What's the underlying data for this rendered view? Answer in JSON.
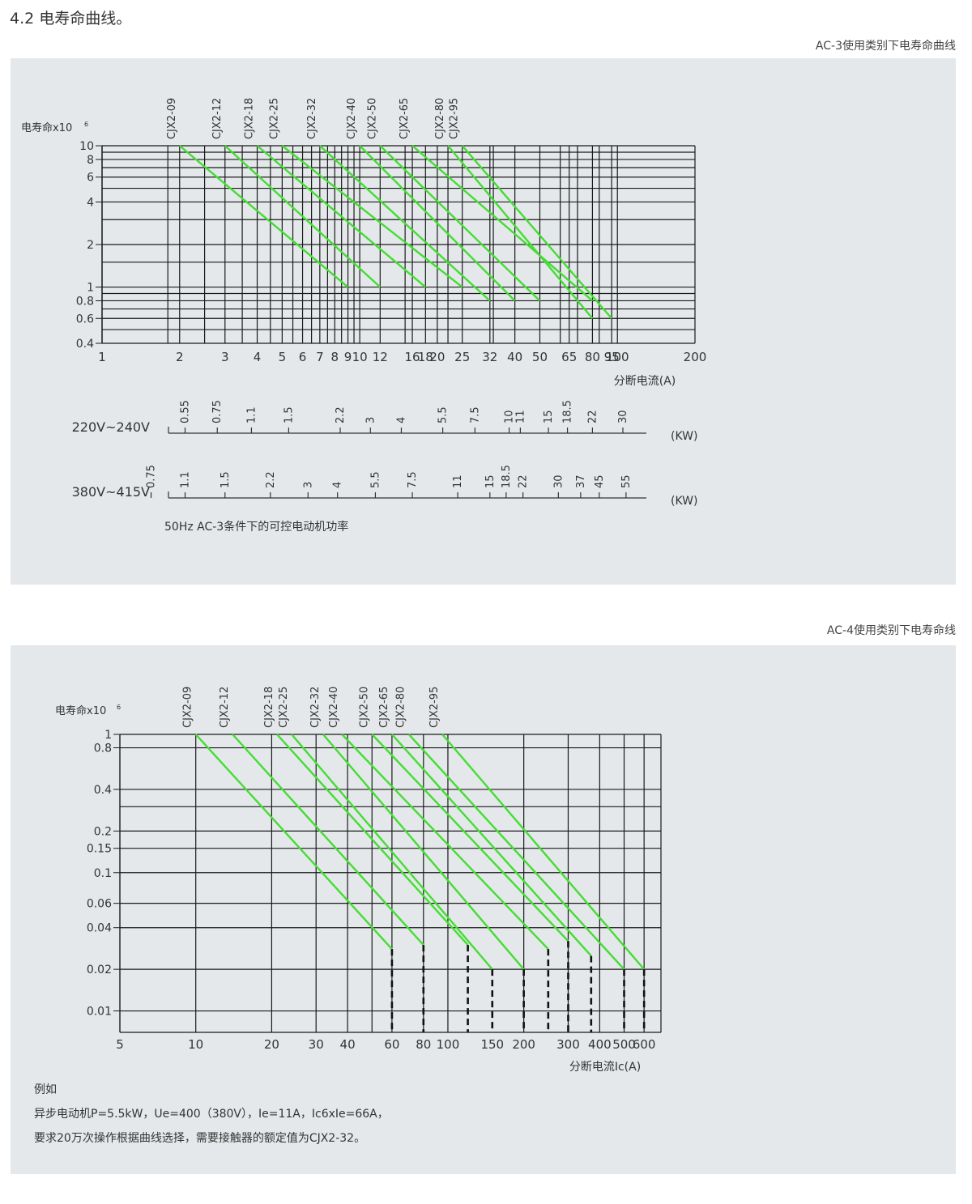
{
  "heading": "4.2 电寿命曲线。",
  "colors": {
    "panel": "#e4e8ea",
    "curve": "#44dd33",
    "grid": "#1a1a1a",
    "dash": "#111111"
  },
  "chart_data": [
    {
      "type": "line",
      "caption": "AC-3使用类别下电寿命曲线",
      "ylabel": "电寿命x10",
      "ylabel_exp": "6",
      "xlabel": "分断电流(A)",
      "x_scale": "log",
      "y_scale": "log",
      "xlim": [
        1,
        200
      ],
      "ylim": [
        0.4,
        10
      ],
      "x_ticks": [
        1,
        2,
        3,
        4,
        5,
        6,
        7,
        8,
        9,
        10,
        12,
        16,
        18,
        20,
        25,
        32,
        40,
        50,
        65,
        80,
        95,
        100,
        200
      ],
      "x_tick_labels": [
        "1",
        "2",
        "3",
        "4",
        "5",
        "6",
        "7",
        "8",
        "9",
        "10",
        "12",
        "16",
        "18",
        "20",
        "25",
        "32",
        "40",
        "50",
        "65",
        "80",
        "95",
        "100",
        "200"
      ],
      "x_grid": [
        1,
        1.8,
        2,
        2.5,
        3,
        3.5,
        4,
        4.5,
        5,
        5.5,
        6,
        6.5,
        7,
        7.5,
        8,
        8.5,
        9,
        9.5,
        10,
        12,
        15,
        16,
        18,
        20,
        22,
        25,
        32,
        33,
        40,
        50,
        60,
        65,
        70,
        80,
        85,
        95,
        100,
        200
      ],
      "y_grid": [
        0.4,
        0.5,
        0.6,
        0.7,
        0.8,
        0.9,
        1,
        1.5,
        2,
        3,
        4,
        5,
        6,
        7,
        8,
        9,
        10
      ],
      "y_ticks": [
        10,
        8,
        6,
        4,
        2,
        1,
        0.8,
        0.6,
        0.4
      ],
      "y_tick_labels": [
        "10",
        "8",
        "6",
        "4",
        "2",
        "1",
        "0.8",
        "0.6",
        "0.4"
      ],
      "series": [
        {
          "name": "CJX2-09",
          "x": [
            2,
            9
          ],
          "y": [
            10,
            1
          ]
        },
        {
          "name": "CJX2-12",
          "x": [
            3,
            12
          ],
          "y": [
            10,
            1
          ]
        },
        {
          "name": "CJX2-18",
          "x": [
            4,
            18
          ],
          "y": [
            10,
            1
          ]
        },
        {
          "name": "CJX2-25",
          "x": [
            5,
            25
          ],
          "y": [
            10,
            1
          ]
        },
        {
          "name": "CJX2-32",
          "x": [
            7,
            32
          ],
          "y": [
            10,
            0.8
          ]
        },
        {
          "name": "CJX2-40",
          "x": [
            10,
            40
          ],
          "y": [
            10,
            0.8
          ]
        },
        {
          "name": "CJX2-50",
          "x": [
            12,
            50
          ],
          "y": [
            10,
            0.8
          ]
        },
        {
          "name": "CJX2-65",
          "x": [
            16,
            80
          ],
          "y": [
            10,
            0.8
          ]
        },
        {
          "name": "CJX2-80",
          "x": [
            22,
            80
          ],
          "y": [
            10,
            0.6
          ]
        },
        {
          "name": "CJX2-95",
          "x": [
            25,
            95
          ],
          "y": [
            10,
            0.6
          ]
        }
      ],
      "power_scales": [
        {
          "label": "220V~240V",
          "unit": "(KW)",
          "ticks": [
            {
              "text": "0.55",
              "current": 2.1
            },
            {
              "text": "0.75",
              "current": 2.8
            },
            {
              "text": "1.1",
              "current": 3.8
            },
            {
              "text": "1.5",
              "current": 5.3
            },
            {
              "text": "2.2",
              "current": 8.4
            },
            {
              "text": "3",
              "current": 11
            },
            {
              "text": "4",
              "current": 14.5
            },
            {
              "text": "5.5",
              "current": 21
            },
            {
              "text": "7.5",
              "current": 28
            },
            {
              "text": "10",
              "current": 38
            },
            {
              "text": "11",
              "current": 42
            },
            {
              "text": "15",
              "current": 54
            },
            {
              "text": "18.5",
              "current": 64
            },
            {
              "text": "22",
              "current": 80
            },
            {
              "text": "30",
              "current": 105
            }
          ]
        },
        {
          "label": "380V~415V",
          "unit": "(KW)",
          "ticks": [
            {
              "text": "0.75",
              "current": 1.55
            },
            {
              "text": "1.1",
              "current": 2.1
            },
            {
              "text": "1.5",
              "current": 3.0
            },
            {
              "text": "2.2",
              "current": 4.5
            },
            {
              "text": "3",
              "current": 6.3
            },
            {
              "text": "4",
              "current": 8.2
            },
            {
              "text": "5.5",
              "current": 11.5
            },
            {
              "text": "7.5",
              "current": 16
            },
            {
              "text": "11",
              "current": 24
            },
            {
              "text": "15",
              "current": 32
            },
            {
              "text": "18.5",
              "current": 37
            },
            {
              "text": "22",
              "current": 43
            },
            {
              "text": "30",
              "current": 59
            },
            {
              "text": "37",
              "current": 72
            },
            {
              "text": "45",
              "current": 85
            },
            {
              "text": "55",
              "current": 108
            }
          ]
        }
      ],
      "note": "50Hz  AC-3条件下的可控电动机功率"
    },
    {
      "type": "line",
      "caption": "AC-4使用类别下电寿命线",
      "ylabel": "电寿命x10",
      "ylabel_exp": "6",
      "xlabel": "分断电流Ic(A)",
      "x_scale": "log",
      "y_scale": "log",
      "xlim": [
        5,
        700
      ],
      "ylim": [
        0.007,
        1
      ],
      "x_ticks": [
        5,
        10,
        20,
        30,
        40,
        60,
        80,
        100,
        150,
        200,
        300,
        400,
        500,
        600
      ],
      "x_tick_labels": [
        "5",
        "10",
        "20",
        "30",
        "40",
        "60",
        "80",
        "100",
        "150",
        "200",
        "300",
        "400",
        "500",
        "600"
      ],
      "x_grid": [
        10,
        20,
        30,
        40,
        50,
        60,
        80,
        100,
        200,
        300,
        400,
        500,
        600,
        700
      ],
      "y_grid": [
        1,
        0.8,
        0.4,
        0.3,
        0.2,
        0.15,
        0.1,
        0.06,
        0.04,
        0.02,
        0.01,
        0.007
      ],
      "y_ticks": [
        1,
        0.8,
        0.4,
        0.2,
        0.15,
        0.1,
        0.06,
        0.04,
        0.02,
        0.01
      ],
      "y_tick_labels": [
        "1",
        "0.8",
        "0.4",
        "0.2",
        "0.15",
        "0.1",
        "0.06",
        "0.04",
        "0.02",
        "0.01"
      ],
      "series": [
        {
          "name": "CJX2-09",
          "x": [
            10,
            60
          ],
          "y": [
            1,
            0.028
          ],
          "dashed_at": 60
        },
        {
          "name": "CJX2-12",
          "x": [
            14,
            80
          ],
          "y": [
            1,
            0.03
          ],
          "dashed_at": 80
        },
        {
          "name": "CJX2-18",
          "x": [
            21,
            120
          ],
          "y": [
            1,
            0.03
          ],
          "dashed_at": 120
        },
        {
          "name": "CJX2-25",
          "x": [
            24,
            150
          ],
          "y": [
            1,
            0.02
          ],
          "dashed_at": 150
        },
        {
          "name": "CJX2-32",
          "x": [
            32,
            200
          ],
          "y": [
            1,
            0.02
          ],
          "dashed_at": 200
        },
        {
          "name": "CJX2-40",
          "x": [
            38,
            250
          ],
          "y": [
            1,
            0.028
          ],
          "dashed_at": 250
        },
        {
          "name": "CJX2-50",
          "x": [
            50,
            300
          ],
          "y": [
            1,
            0.032
          ],
          "dashed_at": 300
        },
        {
          "name": "CJX2-65",
          "x": [
            60,
            370
          ],
          "y": [
            1,
            0.025
          ],
          "dashed_at": 370
        },
        {
          "name": "CJX2-80",
          "x": [
            70,
            500
          ],
          "y": [
            1,
            0.02
          ],
          "dashed_at": 500
        },
        {
          "name": "CJX2-95",
          "x": [
            95,
            600
          ],
          "y": [
            1,
            0.02
          ],
          "dashed_at": 600
        }
      ]
    }
  ],
  "example": {
    "title": "例如",
    "line1": "异步电动机P=5.5kW，Ue=400（380V），Ie=11A，Ic6xIe=66A，",
    "line2": "要求20万次操作根据曲线选择，需要接触器的额定值为CJX2-32。"
  }
}
